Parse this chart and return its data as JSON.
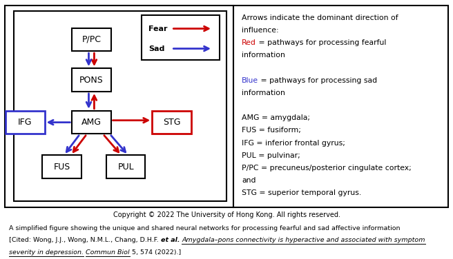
{
  "red": "#cc0000",
  "blue": "#3333cc",
  "node_labels": {
    "PPC": "P/PC",
    "PONS": "PONS",
    "AMG": "AMG",
    "IFG": "IFG",
    "STG": "STG",
    "FUS": "FUS",
    "PUL": "PUL"
  },
  "copyright_text": "Copyright © 2022 The University of Hong Kong. All rights reserved.",
  "caption_line1": "A simplified figure showing the unique and shared neural networks for processing fearful and sad affective information",
  "caption_line2a": "[Cited: Wong, J.J., Wong, N.M.L., Chang, D.H.F. ",
  "caption_line2b": "et al.",
  "caption_line2c": " ",
  "caption_line2d": "Amygdala–pons connectivity is hyperactive and associated with symptom",
  "caption_line3a": "severity in depression.",
  "caption_line3b": " ",
  "caption_line3c": "Commun Biol",
  "caption_line3d": " 5, 574 (2022).]"
}
